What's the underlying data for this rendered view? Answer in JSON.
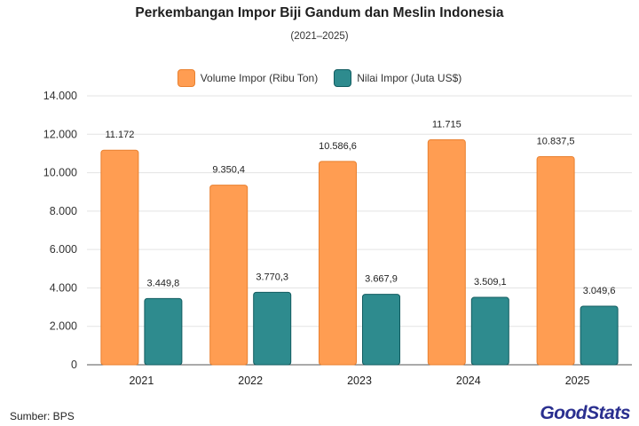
{
  "header": {
    "title": "Perkembangan Impor Biji Gandum dan Meslin Indonesia",
    "subtitle": "(2021–2025)"
  },
  "footer": {
    "source": "Sumber: BPS",
    "logo_text_1": "Good",
    "logo_text_2": "Stats"
  },
  "chart_data": {
    "type": "bar",
    "categories": [
      "2021",
      "2022",
      "2023",
      "2024",
      "2025"
    ],
    "series": [
      {
        "name": "Volume Impor (Ribu Ton)",
        "values": [
          11172,
          9350.4,
          10586.6,
          11715,
          10837.5
        ],
        "labels": [
          "11.172",
          "9.350,4",
          "10.586,6",
          "11.715",
          "10.837,5"
        ],
        "color": "#ff9d52",
        "stroke": "#e9802f"
      },
      {
        "name": "Nilai Impor (Juta US$)",
        "values": [
          3449.8,
          3770.3,
          3667.9,
          3509.1,
          3049.6
        ],
        "labels": [
          "3.449,8",
          "3.770,3",
          "3.667,9",
          "3.509,1",
          "3.049,6"
        ],
        "color": "#2e8b8e",
        "stroke": "#125c60"
      }
    ],
    "ylim": [
      0,
      14000
    ],
    "yticks": [
      0,
      2000,
      4000,
      6000,
      8000,
      10000,
      12000,
      14000
    ],
    "ytick_labels": [
      "0",
      "2.000",
      "4.000",
      "6.000",
      "8.000",
      "10.000",
      "12.000",
      "14.000"
    ],
    "grid": true,
    "legend_position": "top-center"
  }
}
